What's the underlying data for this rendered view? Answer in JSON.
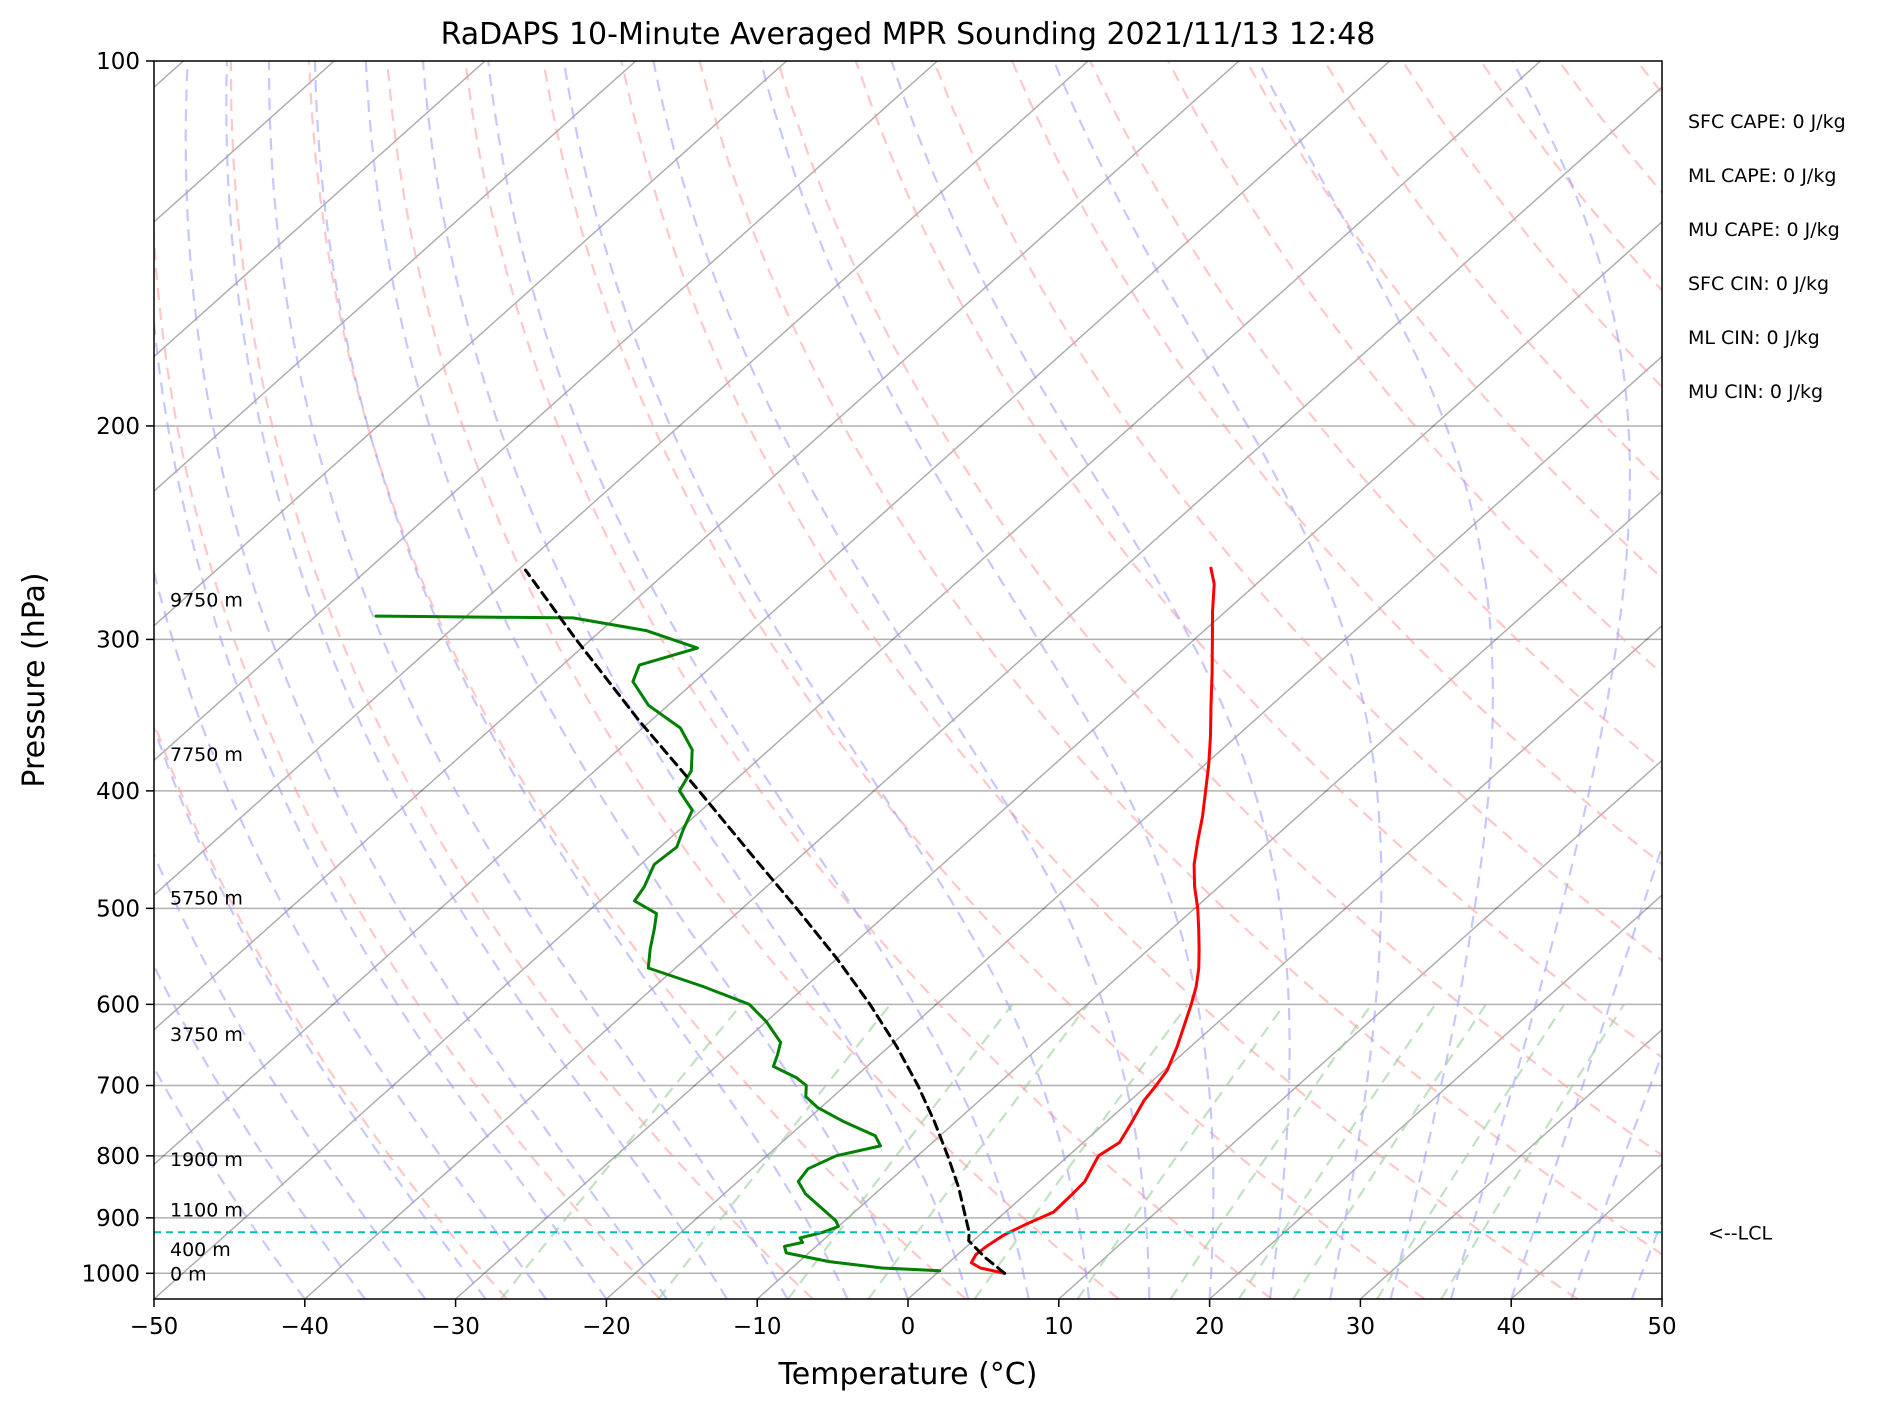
{
  "chart_data": {
    "type": "line",
    "title": "RaDAPS 10-Minute Averaged MPR Sounding 2021/11/13 12:48",
    "xlabel": "Temperature (°C)",
    "ylabel": "Pressure (hPa)",
    "xlim": [
      -50,
      50
    ],
    "ylim": [
      1050,
      100
    ],
    "y_scale": "log",
    "grid": true,
    "x_ticks": [
      "−50",
      "−40",
      "−30",
      "−20",
      "−10",
      "0",
      "10",
      "20",
      "30",
      "40",
      "50"
    ],
    "y_ticks": [
      {
        "p": 100,
        "label": "100"
      },
      {
        "p": 200,
        "label": "200"
      },
      {
        "p": 300,
        "label": "300"
      },
      {
        "p": 400,
        "label": "400"
      },
      {
        "p": 500,
        "label": "500"
      },
      {
        "p": 600,
        "label": "600"
      },
      {
        "p": 700,
        "label": "700"
      },
      {
        "p": 800,
        "label": "800"
      },
      {
        "p": 900,
        "label": "900"
      },
      {
        "p": 1000,
        "label": "1000"
      }
    ],
    "series": [
      {
        "color": "#ff0000",
        "points": [
          {
            "p": 1000,
            "t": 4.5
          },
          {
            "p": 990,
            "t": 2.5
          },
          {
            "p": 980,
            "t": 1.5
          },
          {
            "p": 965,
            "t": 1.2
          },
          {
            "p": 950,
            "t": 1.3
          },
          {
            "p": 930,
            "t": 1.6
          },
          {
            "p": 910,
            "t": 2.3
          },
          {
            "p": 890,
            "t": 3.2
          },
          {
            "p": 860,
            "t": 3.1
          },
          {
            "p": 840,
            "t": 3.0
          },
          {
            "p": 820,
            "t": 2.5
          },
          {
            "p": 800,
            "t": 2.0
          },
          {
            "p": 780,
            "t": 2.4
          },
          {
            "p": 750,
            "t": 1.7
          },
          {
            "p": 720,
            "t": 0.9
          },
          {
            "p": 700,
            "t": 0.6
          },
          {
            "p": 680,
            "t": 0.2
          },
          {
            "p": 650,
            "t": -0.9
          },
          {
            "p": 620,
            "t": -2.2
          },
          {
            "p": 600,
            "t": -3.1
          },
          {
            "p": 580,
            "t": -4.1
          },
          {
            "p": 560,
            "t": -5.3
          },
          {
            "p": 540,
            "t": -6.7
          },
          {
            "p": 520,
            "t": -8.2
          },
          {
            "p": 500,
            "t": -9.8
          },
          {
            "p": 480,
            "t": -11.6
          },
          {
            "p": 460,
            "t": -13.3
          },
          {
            "p": 440,
            "t": -14.8
          },
          {
            "p": 420,
            "t": -16.3
          },
          {
            "p": 400,
            "t": -18.0
          },
          {
            "p": 380,
            "t": -19.8
          },
          {
            "p": 360,
            "t": -21.8
          },
          {
            "p": 340,
            "t": -24.0
          },
          {
            "p": 320,
            "t": -26.3
          },
          {
            "p": 300,
            "t": -28.8
          },
          {
            "p": 285,
            "t": -30.8
          },
          {
            "p": 270,
            "t": -32.8
          },
          {
            "p": 262,
            "t": -34.2
          }
        ]
      },
      {
        "color": "#008000",
        "points": [
          {
            "p": 995,
            "t": 0.0
          },
          {
            "p": 990,
            "t": -4.0
          },
          {
            "p": 978,
            "t": -8.0
          },
          {
            "p": 962,
            "t": -11.5
          },
          {
            "p": 950,
            "t": -12.1
          },
          {
            "p": 943,
            "t": -11.2
          },
          {
            "p": 935,
            "t": -11.7
          },
          {
            "p": 925,
            "t": -10.6
          },
          {
            "p": 915,
            "t": -10.0
          },
          {
            "p": 905,
            "t": -10.6
          },
          {
            "p": 890,
            "t": -11.9
          },
          {
            "p": 860,
            "t": -14.6
          },
          {
            "p": 840,
            "t": -16.0
          },
          {
            "p": 820,
            "t": -16.3
          },
          {
            "p": 800,
            "t": -15.4
          },
          {
            "p": 785,
            "t": -13.2
          },
          {
            "p": 770,
            "t": -14.3
          },
          {
            "p": 750,
            "t": -17.4
          },
          {
            "p": 730,
            "t": -20.2
          },
          {
            "p": 715,
            "t": -21.8
          },
          {
            "p": 700,
            "t": -22.6
          },
          {
            "p": 690,
            "t": -23.8
          },
          {
            "p": 675,
            "t": -26.2
          },
          {
            "p": 660,
            "t": -26.8
          },
          {
            "p": 645,
            "t": -27.5
          },
          {
            "p": 620,
            "t": -30.0
          },
          {
            "p": 600,
            "t": -32.4
          },
          {
            "p": 580,
            "t": -36.8
          },
          {
            "p": 560,
            "t": -41.8
          },
          {
            "p": 540,
            "t": -43.1
          },
          {
            "p": 520,
            "t": -44.3
          },
          {
            "p": 505,
            "t": -45.3
          },
          {
            "p": 493,
            "t": -47.7
          },
          {
            "p": 480,
            "t": -48.1
          },
          {
            "p": 460,
            "t": -49.1
          },
          {
            "p": 445,
            "t": -48.9
          },
          {
            "p": 430,
            "t": -49.8
          },
          {
            "p": 415,
            "t": -50.6
          },
          {
            "p": 400,
            "t": -52.9
          },
          {
            "p": 385,
            "t": -53.6
          },
          {
            "p": 370,
            "t": -55.1
          },
          {
            "p": 355,
            "t": -57.5
          },
          {
            "p": 340,
            "t": -61.3
          },
          {
            "p": 325,
            "t": -64.1
          },
          {
            "p": 315,
            "t": -64.9
          },
          {
            "p": 305,
            "t": -62.3
          },
          {
            "p": 295,
            "t": -67.0
          },
          {
            "p": 288,
            "t": -72.8
          },
          {
            "p": 287,
            "t": -86.0
          }
        ]
      },
      {
        "color": "#000000",
        "dashed": true,
        "points": [
          {
            "p": 1000,
            "t": 4.5
          },
          {
            "p": 970,
            "t": 2.0
          },
          {
            "p": 940,
            "t": -0.3
          },
          {
            "p": 925,
            "t": -0.9
          },
          {
            "p": 900,
            "t": -2.2
          },
          {
            "p": 850,
            "t": -4.9
          },
          {
            "p": 800,
            "t": -8.0
          },
          {
            "p": 750,
            "t": -11.4
          },
          {
            "p": 700,
            "t": -15.2
          },
          {
            "p": 650,
            "t": -19.5
          },
          {
            "p": 600,
            "t": -24.4
          },
          {
            "p": 550,
            "t": -30.0
          },
          {
            "p": 500,
            "t": -36.4
          },
          {
            "p": 450,
            "t": -43.6
          },
          {
            "p": 400,
            "t": -51.6
          },
          {
            "p": 350,
            "t": -60.8
          },
          {
            "p": 300,
            "t": -71.0
          },
          {
            "p": 263,
            "t": -79.5
          }
        ]
      }
    ],
    "height_labels": [
      {
        "p": 1000,
        "label": "0 m"
      },
      {
        "p": 955,
        "label": "400 m"
      },
      {
        "p": 886,
        "label": "1100 m"
      },
      {
        "p": 805,
        "label": "1900 m"
      },
      {
        "p": 635,
        "label": "3750 m"
      },
      {
        "p": 490,
        "label": "5750 m"
      },
      {
        "p": 373,
        "label": "7750 m"
      },
      {
        "p": 278,
        "label": "9750 m"
      }
    ],
    "lcl": {
      "p": 925,
      "label": "<--LCL",
      "color": "#00bfbf"
    },
    "indices": [
      "SFC CAPE: 0 J/kg",
      "ML CAPE: 0 J/kg",
      "MU CAPE: 0 J/kg",
      "SFC CIN: 0 J/kg",
      "ML CIN: 0 J/kg",
      "MU CIN: 0 J/kg"
    ],
    "background_lines": {
      "isotherm_color": "#000000",
      "dry_adiabat_color": "#ff9999",
      "moist_adiabat_color": "#9999ff",
      "mixing_ratio_color": "#99cc99"
    }
  }
}
